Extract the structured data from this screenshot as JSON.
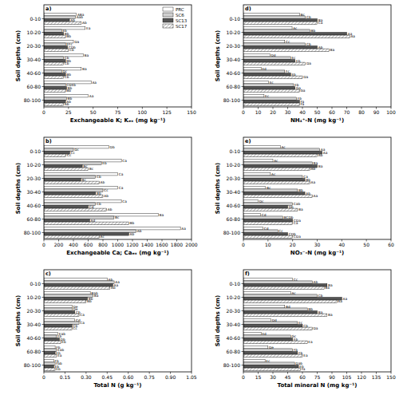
{
  "chart_data": [
    {
      "type": "bar",
      "orientation": "horizontal",
      "title": "a)",
      "x_label": "Exchangeable K; Kₑₓ (mg kg⁻¹)",
      "y_label": "Soil depths (cm)",
      "legend": "upper right",
      "categories": [
        "0-10",
        "10-20",
        "20-30",
        "30-40",
        "40-60",
        "60-80",
        "80-100"
      ],
      "xlim": [
        0,
        150
      ],
      "xticks": [
        0,
        25,
        50,
        75,
        100,
        125,
        150
      ],
      "series": [
        {
          "name": "PRC",
          "color": "#ffffff",
          "values": [
            33,
            42,
            30,
            40,
            38,
            48,
            45
          ],
          "labels": [
            "ABa",
            "Ea",
            "Da",
            "Ba",
            "Ba",
            "Aa",
            "Aa"
          ]
        },
        {
          "name": "SC6",
          "color": "#d0d0d0",
          "values": [
            32,
            18,
            22,
            20,
            18,
            22,
            23
          ],
          "labels": [
            "Aab",
            "Eb",
            "EFc",
            "Cb",
            "Dc",
            "CDEb",
            "Bb"
          ]
        },
        {
          "name": "SC13",
          "color": "#555555",
          "values": [
            26,
            20,
            24,
            22,
            22,
            23,
            22
          ],
          "labels": [
            "Ab",
            "Bb",
            "CDb",
            "Bb",
            "Bb",
            "Bb",
            "Ab"
          ]
        },
        {
          "name": "SC17",
          "color": "#ffffff",
          "line_style": "hatch",
          "values": [
            38,
            22,
            25,
            20,
            20,
            22,
            20
          ],
          "labels": [
            "Ab",
            "Bb",
            "Cb",
            "Cb",
            "Cb",
            "Bb",
            "Ab"
          ]
        }
      ]
    },
    {
      "type": "bar",
      "orientation": "horizontal",
      "title": "b)",
      "x_label": "Exchangeable Ca; Caₑₓ (mg kg⁻¹)",
      "y_label": "Soil depths (cm)",
      "categories": [
        "0-10",
        "10-20",
        "20-30",
        "30-40",
        "40-60",
        "60-80",
        "80-100"
      ],
      "xlim": [
        0,
        2000
      ],
      "xticks": [
        0,
        200,
        400,
        600,
        800,
        1000,
        1200,
        1400,
        1600,
        1800,
        2000
      ],
      "series": [
        {
          "name": "PRC",
          "color": "#ffffff",
          "values": [
            880,
            1050,
            1000,
            1000,
            1050,
            1550,
            1850
          ],
          "labels": [
            "Db",
            "Ca",
            "Ca",
            "Ca",
            "Ca",
            "Ba",
            "Aa"
          ]
        },
        {
          "name": "SC6",
          "color": "#d0d0d0",
          "values": [
            400,
            780,
            700,
            800,
            700,
            950,
            1250
          ],
          "labels": [
            "Dc",
            "Eb",
            "Cb",
            "Cc",
            "Cb",
            "Bc",
            "Ab"
          ]
        },
        {
          "name": "SC13",
          "color": "#555555",
          "values": [
            350,
            520,
            500,
            700,
            600,
            620,
            1150
          ],
          "labels": [
            "Cc",
            "Bc",
            "Bc",
            "Bb",
            "Cd",
            "Ad",
            "Ab"
          ]
        },
        {
          "name": "SC17",
          "color": "#ffffff",
          "line_style": "hatch",
          "values": [
            300,
            600,
            750,
            800,
            850,
            1150,
            750
          ],
          "labels": [
            "Cc",
            "Bc",
            "Ab",
            "Ab",
            "Ab",
            "Bb",
            "Ac"
          ]
        }
      ]
    },
    {
      "type": "bar",
      "orientation": "horizontal",
      "title": "c)",
      "x_label": "Total N (g kg⁻¹)",
      "y_label": "Soil depths (cm)",
      "categories": [
        "0-10",
        "10-20",
        "20-30",
        "30-40",
        "40-60",
        "60-80",
        "80-100"
      ],
      "xlim": [
        0,
        1.05
      ],
      "xticks": [
        0,
        0.15,
        {
          "value": 0.3,
          "label": "0.30"
        },
        0.45,
        {
          "value": 0.6,
          "label": "0.60"
        },
        0.75,
        {
          "value": 0.9,
          "label": "0.90"
        },
        1.05
      ],
      "series": [
        {
          "name": "PRC",
          "color": "#ffffff",
          "values": [
            0.45,
            0.33,
            0.2,
            0.22,
            0.1,
            0.08,
            0.07
          ],
          "labels": [
            "Ab",
            "Bab",
            "De",
            "Cd",
            "Eab",
            "Fb",
            "Fb"
          ]
        },
        {
          "name": "SC6",
          "color": "#d0d0d0",
          "values": [
            0.5,
            0.35,
            0.2,
            0.25,
            0.09,
            0.09,
            0.08
          ],
          "labels": [
            "Aa",
            "Ba",
            "De",
            "Ca",
            "Fb",
            "Eab",
            "Fab"
          ]
        },
        {
          "name": "SC13",
          "color": "#555555",
          "values": [
            0.49,
            0.31,
            0.22,
            0.2,
            0.11,
            0.08,
            0.07
          ],
          "labels": [
            "Aa",
            "Bb",
            "Cb",
            "Cb",
            "Db",
            "Eb",
            "Eb"
          ]
        },
        {
          "name": "SC17",
          "color": "#ffffff",
          "line_style": "hatch",
          "values": [
            0.47,
            0.3,
            0.25,
            0.2,
            0.12,
            0.09,
            0.08
          ],
          "labels": [
            "Ab",
            "Bb",
            "Ca",
            "Cc",
            "Eb",
            "Ea",
            "Eb"
          ]
        }
      ]
    },
    {
      "type": "bar",
      "orientation": "horizontal",
      "title": "d)",
      "x_label": "NH₄⁺-N (mg kg⁻¹)",
      "y_label": "Soil depths (cm)",
      "categories": [
        "0-10",
        "10-20",
        "20-30",
        "30-40",
        "40-60",
        "60-80",
        "80-100"
      ],
      "xlim": [
        0,
        100
      ],
      "xticks": [
        0,
        10,
        20,
        30,
        40,
        50,
        60,
        70,
        80,
        90,
        100
      ],
      "series": [
        {
          "name": "PRC",
          "color": "#ffffff",
          "values": [
            38,
            33,
            28,
            18,
            12,
            17,
            14
          ],
          "labels": [
            "Bc",
            "Ac",
            "Cc",
            "Dd",
            "Ed",
            "Ec",
            "Ec"
          ]
        },
        {
          "name": "SC6",
          "color": "#d0d0d0",
          "values": [
            42,
            45,
            42,
            32,
            28,
            34,
            36
          ],
          "labels": [
            "Cb",
            "Bb",
            "Cb",
            "Ec",
            "Fc",
            "Eb",
            "Fb"
          ]
        },
        {
          "name": "SC13",
          "color": "#555555",
          "values": [
            50,
            70,
            50,
            35,
            32,
            35,
            38
          ],
          "labels": [
            "Ba",
            "Aa",
            "Ab",
            "Eb",
            "Eb",
            "Ga",
            "Fa"
          ]
        },
        {
          "name": "SC17",
          "color": "#ffffff",
          "line_style": "hatch",
          "values": [
            50,
            72,
            58,
            42,
            40,
            38,
            38
          ],
          "labels": [
            "Ca",
            "Aa",
            "Ba",
            "Da",
            "Da",
            "Ga",
            "Fa"
          ]
        }
      ]
    },
    {
      "type": "bar",
      "orientation": "horizontal",
      "title": "e)",
      "x_label": "NO₃⁻-N (mg kg⁻¹)",
      "y_label": "Soil depths (cm)",
      "categories": [
        "0-10",
        "10-20",
        "20-30",
        "30-40",
        "40-60",
        "60-80",
        "80-100"
      ],
      "xlim": [
        0,
        60
      ],
      "xticks": [
        0,
        10,
        20,
        30,
        40,
        50,
        60
      ],
      "series": [
        {
          "name": "PRC",
          "color": "#ffffff",
          "values": [
            15,
            12,
            11,
            9,
            6,
            7,
            8
          ],
          "labels": [
            "Ac",
            "Ac",
            "Ac",
            "Bc",
            "Dc",
            "Cd",
            "Cd"
          ]
        },
        {
          "name": "SC6",
          "color": "#d0d0d0",
          "values": [
            31,
            28,
            24,
            22,
            20,
            16,
            14
          ],
          "labels": [
            "Aa",
            "Ba",
            "Ca",
            "Bb",
            "Cab",
            "BCDb",
            "Cc"
          ]
        },
        {
          "name": "SC13",
          "color": "#555555",
          "values": [
            32,
            30,
            25,
            25,
            18,
            20,
            18
          ],
          "labels": [
            "Aa",
            "Ba",
            "Bb",
            "Ab",
            "Db",
            "CDa",
            "CDb"
          ]
        },
        {
          "name": "SC17",
          "color": "#ffffff",
          "line_style": "hatch",
          "values": [
            30,
            27,
            27,
            28,
            22,
            20,
            20
          ],
          "labels": [
            "Ab",
            "Ab",
            "Aa",
            "Aa",
            "Ba",
            "Ca",
            "CDa"
          ]
        }
      ]
    },
    {
      "type": "bar",
      "orientation": "horizontal",
      "title": "f)",
      "x_label": "Total mineral N (mg kg⁻¹)",
      "y_label": "Soil depths (cm)",
      "categories": [
        "0-10",
        "10-20",
        "20-30",
        "30-40",
        "40-60",
        "60-80",
        "80-100"
      ],
      "xlim": [
        0,
        150
      ],
      "xticks": [
        0,
        15,
        30,
        45,
        60,
        75,
        90,
        105,
        120,
        135,
        150
      ],
      "series": [
        {
          "name": "PRC",
          "color": "#ffffff",
          "values": [
            50,
            48,
            42,
            28,
            18,
            25,
            22
          ],
          "labels": [
            "Cc",
            "Ac",
            "Bd",
            "Dd",
            "Ed",
            "De",
            "Ec"
          ]
        },
        {
          "name": "SC6",
          "color": "#d0d0d0",
          "values": [
            70,
            75,
            65,
            55,
            48,
            50,
            52
          ],
          "labels": [
            "Ab",
            "Cb",
            "Bb",
            "Ec",
            "Gc",
            "Fb",
            "Dab"
          ]
        },
        {
          "name": "SC13",
          "color": "#555555",
          "values": [
            85,
            100,
            75,
            60,
            50,
            55,
            56
          ],
          "labels": [
            "Ba",
            "Aa",
            "Ba",
            "Cb",
            "Eb",
            "Fb",
            "Eb"
          ]
        },
        {
          "name": "SC17",
          "color": "#ffffff",
          "line_style": "hatch",
          "values": [
            82,
            95,
            85,
            70,
            65,
            60,
            58
          ],
          "labels": [
            "Ba",
            "Aa",
            "Ba",
            "Da",
            "Ea",
            "Ea",
            "Fa"
          ]
        }
      ]
    }
  ]
}
